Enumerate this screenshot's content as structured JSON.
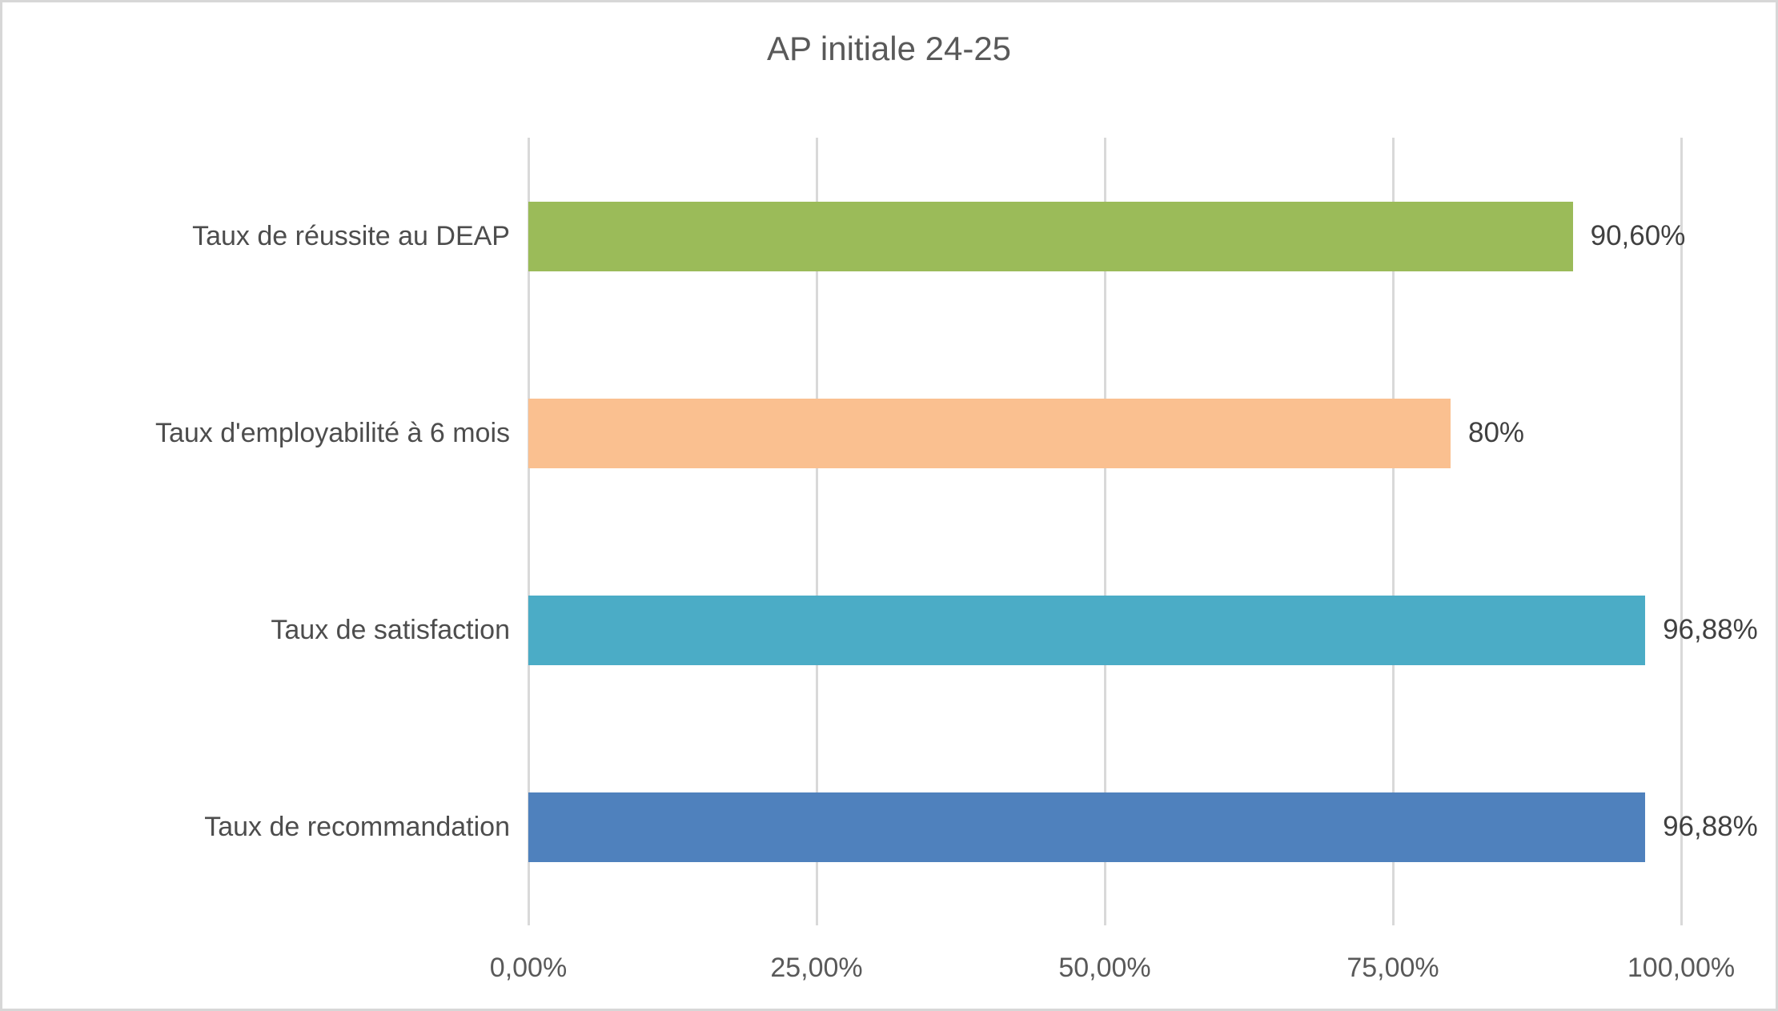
{
  "chart_data": {
    "type": "bar",
    "orientation": "horizontal",
    "title": "AP initiale 24-25",
    "categories": [
      "Taux de réussite au DEAP",
      "Taux d'employabilité à 6 mois",
      "Taux de satisfaction",
      "Taux de recommandation"
    ],
    "values": [
      90.6,
      80,
      96.88,
      96.88
    ],
    "value_labels": [
      "90,60%",
      "80%",
      "96,88%",
      "96,88%"
    ],
    "bar_colors": [
      "#9BBB59",
      "#FAC090",
      "#4BACC6",
      "#4F81BD"
    ],
    "x_axis": {
      "tick_labels": [
        "0,00%",
        "25,00%",
        "50,00%",
        "75,00%",
        "100,00%"
      ],
      "tick_values": [
        0,
        25,
        50,
        75,
        100
      ],
      "min": 0,
      "max": 100
    },
    "grid": true,
    "legend": false,
    "colors": {
      "title_text": "#595959",
      "axis_text": "#595959",
      "category_text": "#4d4d4d",
      "value_text": "#404040",
      "gridline": "#D9D9D9",
      "chart_border": "#D7D7D7",
      "background": "#FFFFFF"
    }
  }
}
